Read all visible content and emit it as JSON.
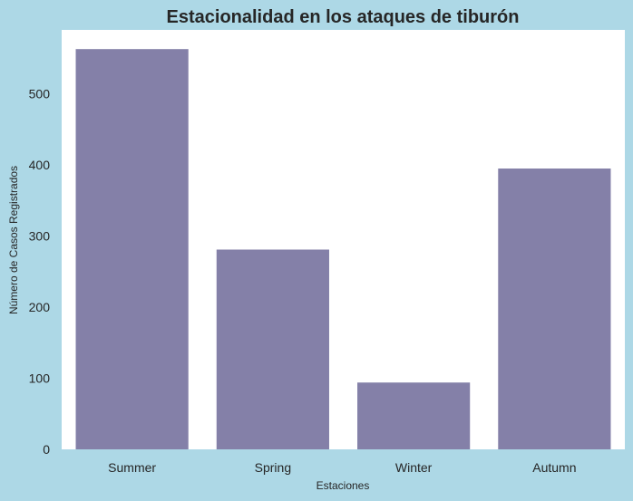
{
  "chart_data": {
    "type": "bar",
    "title": "Estacionalidad en los ataques de tiburón",
    "xlabel": "Estaciones",
    "ylabel": "Número de Casos Registrados",
    "categories": [
      "Summer",
      "Spring",
      "Winter",
      "Autumn"
    ],
    "values": [
      563,
      281,
      94,
      395
    ],
    "ylim": [
      0,
      590
    ],
    "yticks": [
      0,
      100,
      200,
      300,
      400,
      500
    ],
    "grid": false,
    "bar_color": "#8480a8",
    "plot_background": "#ffffff",
    "figure_background": "#add8e6"
  }
}
